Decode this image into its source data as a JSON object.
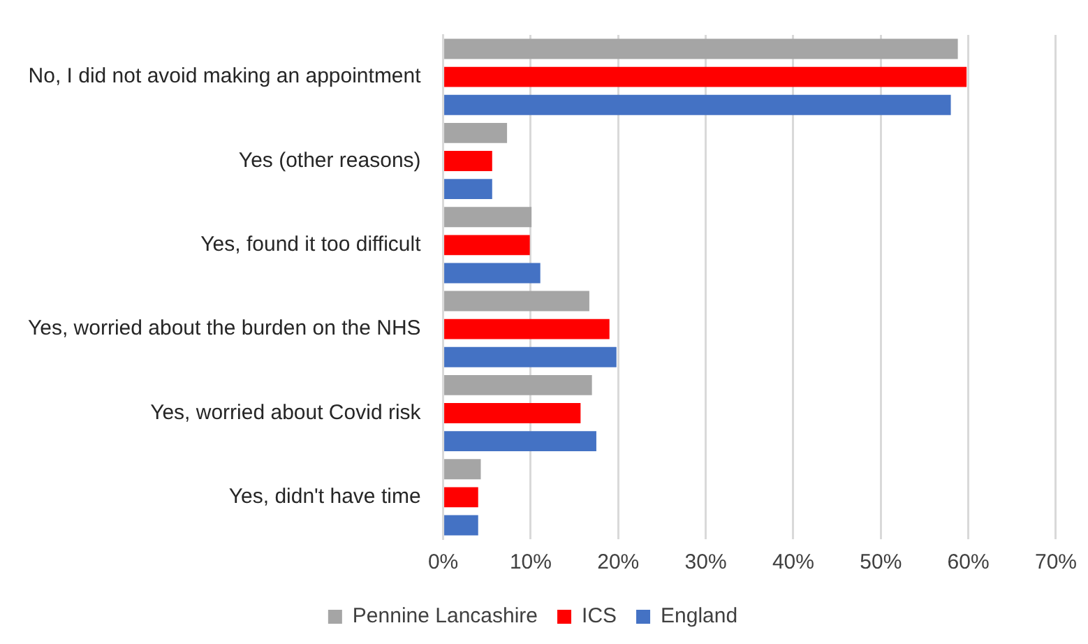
{
  "chart_data": {
    "type": "bar",
    "orientation": "horizontal",
    "categories": [
      "No, I did not avoid making an appointment",
      "Yes (other reasons)",
      "Yes, found it too difficult",
      "Yes, worried about the burden on the NHS",
      "Yes, worried about Covid risk",
      "Yes, didn't have time"
    ],
    "series": [
      {
        "name": "Pennine Lancashire",
        "color": "#a5a5a5",
        "values": [
          58.8,
          7.3,
          10.1,
          16.7,
          17.0,
          4.3
        ]
      },
      {
        "name": "ICS",
        "color": "#ff0000",
        "values": [
          59.8,
          5.6,
          9.9,
          19.0,
          15.7,
          4.0
        ]
      },
      {
        "name": "England",
        "color": "#4472c4",
        "values": [
          58.0,
          5.6,
          11.1,
          19.8,
          17.5,
          4.0
        ]
      }
    ],
    "xlim": [
      0,
      70
    ],
    "xticks": [
      {
        "value": 0,
        "label": "0%"
      },
      {
        "value": 10,
        "label": "10%"
      },
      {
        "value": 20,
        "label": "20%"
      },
      {
        "value": 30,
        "label": "30%"
      },
      {
        "value": 40,
        "label": "40%"
      },
      {
        "value": 50,
        "label": "50%"
      },
      {
        "value": 60,
        "label": "60%"
      },
      {
        "value": 70,
        "label": "70%"
      }
    ],
    "grid": "x",
    "legend": "bottom"
  }
}
